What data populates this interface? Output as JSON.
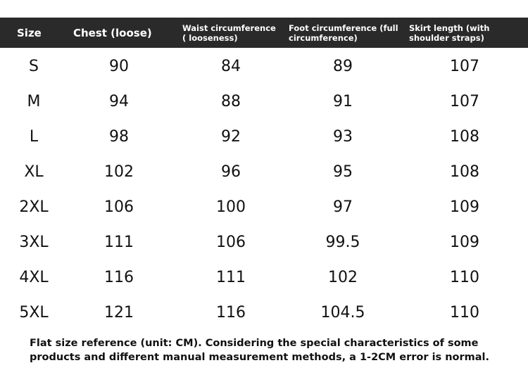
{
  "header": {
    "size": "Size",
    "chest": "Chest (loose)",
    "waist": "Waist circumference ( looseness)",
    "foot": "Foot circumference (full circumference)",
    "skirt": "Skirt length (with shoulder straps)"
  },
  "rows": [
    {
      "size": "S",
      "chest": "90",
      "waist": "84",
      "foot": "89",
      "skirt": "107"
    },
    {
      "size": "M",
      "chest": "94",
      "waist": "88",
      "foot": "91",
      "skirt": "107"
    },
    {
      "size": "L",
      "chest": "98",
      "waist": "92",
      "foot": "93",
      "skirt": "108"
    },
    {
      "size": "XL",
      "chest": "102",
      "waist": "96",
      "foot": "95",
      "skirt": "108"
    },
    {
      "size": "2XL",
      "chest": "106",
      "waist": "100",
      "foot": "97",
      "skirt": "109"
    },
    {
      "size": "3XL",
      "chest": "111",
      "waist": "106",
      "foot": "99.5",
      "skirt": "109"
    },
    {
      "size": "4XL",
      "chest": "116",
      "waist": "111",
      "foot": "102",
      "skirt": "110"
    },
    {
      "size": "5XL",
      "chest": "121",
      "waist": "116",
      "foot": "104.5",
      "skirt": "110"
    }
  ],
  "footnote": "Flat size reference (unit: CM). Considering the special characteristics of some products and different manual measurement methods, a 1-2CM error is normal.",
  "colors": {
    "header_bg": "#2a2a2a",
    "header_text": "#ffffff",
    "body_text": "#111111"
  }
}
